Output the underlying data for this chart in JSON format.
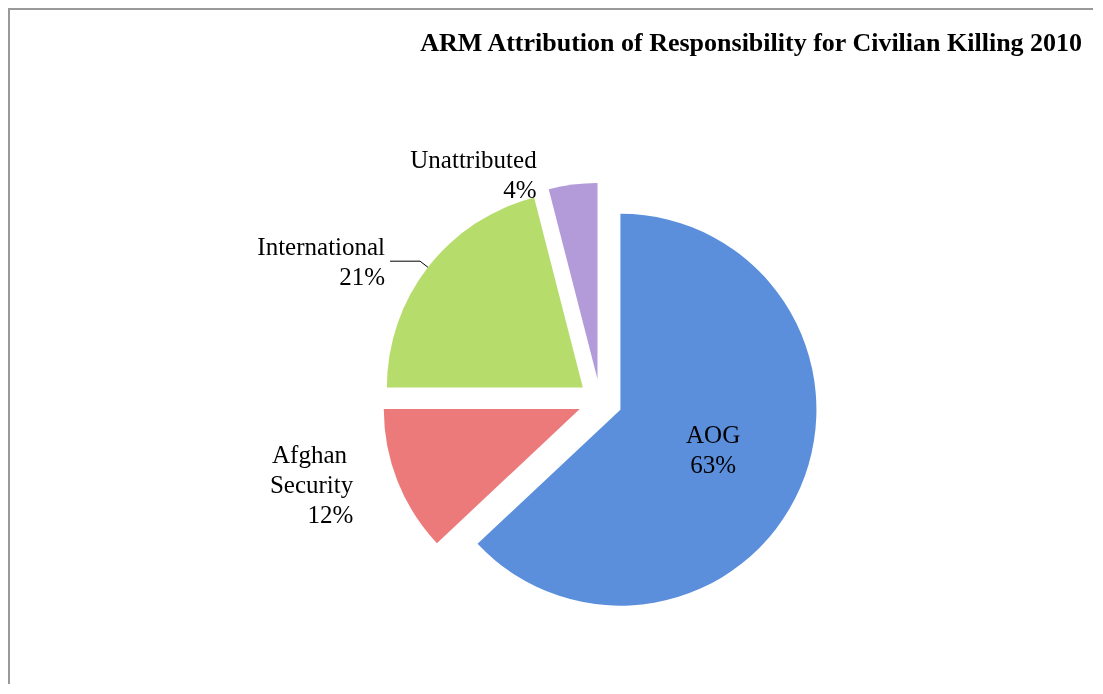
{
  "chart_data": {
    "type": "pie",
    "title": "ARM Attribution of Responsibility for Civilian Killing 2010",
    "categories": [
      "AOG",
      "Afghan Security",
      "International",
      "Unattributed"
    ],
    "values": [
      63,
      12,
      21,
      4
    ],
    "value_labels": [
      "63%",
      "12%",
      "21%",
      "4%"
    ],
    "colors": [
      "#5b8fdc",
      "#ec7a7a",
      "#b6dc6c",
      "#b39ad9"
    ],
    "legend": false
  }
}
